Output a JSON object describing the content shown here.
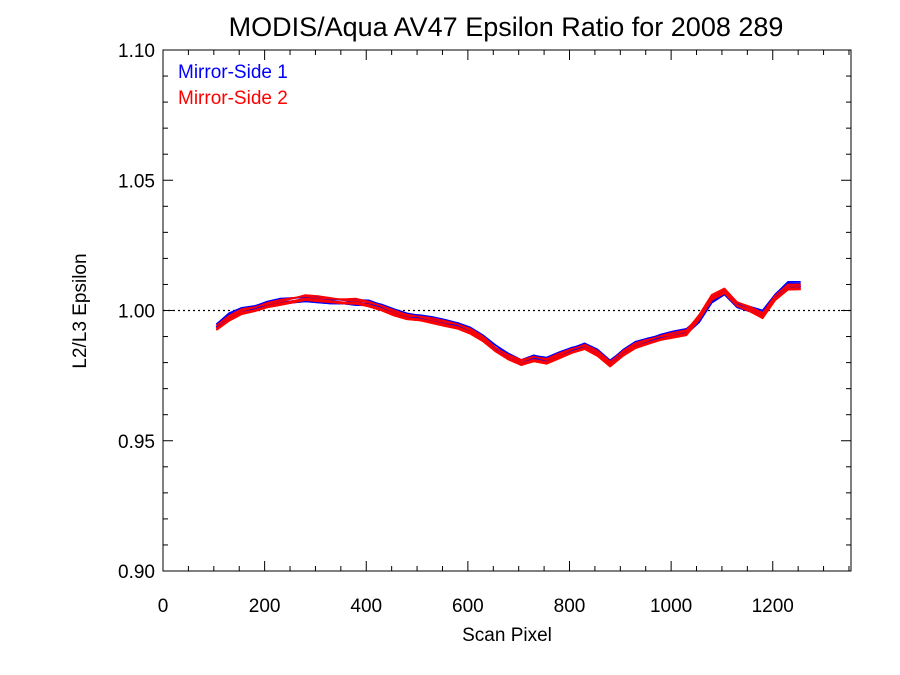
{
  "chart_data": {
    "type": "line",
    "title": "MODIS/Aqua AV47 Epsilon Ratio for 2008 289",
    "xlabel": "Scan Pixel",
    "ylabel": "L2/L3 Epsilon",
    "xlim": [
      0,
      1354
    ],
    "ylim": [
      0.9,
      1.1
    ],
    "x_ticks": [
      0,
      200,
      400,
      600,
      800,
      1000,
      1200
    ],
    "x_tick_labels": [
      "0",
      "200",
      "400",
      "600",
      "800",
      "1000",
      "1200"
    ],
    "y_ticks": [
      0.9,
      0.95,
      1.0,
      1.05,
      1.1
    ],
    "y_tick_labels": [
      "0.90",
      "0.95",
      "1.00",
      "1.05",
      "1.10"
    ],
    "reference_line": {
      "y": 1.0,
      "style": "dotted",
      "color": "#000000"
    },
    "legend": {
      "position": "top-left"
    },
    "x": [
      105,
      130,
      155,
      180,
      205,
      230,
      255,
      280,
      305,
      330,
      355,
      380,
      405,
      430,
      455,
      480,
      505,
      530,
      555,
      580,
      605,
      630,
      655,
      680,
      705,
      730,
      755,
      780,
      805,
      830,
      855,
      880,
      905,
      930,
      955,
      980,
      1005,
      1030,
      1055,
      1080,
      1105,
      1130,
      1155,
      1180,
      1205,
      1230,
      1255
    ],
    "series": [
      {
        "name": "Mirror-Side 1",
        "color": "#0000ff",
        "values": [
          0.9935,
          0.9975,
          0.9995,
          1.0005,
          1.002,
          1.003,
          1.0035,
          1.004,
          1.0035,
          1.003,
          1.003,
          1.0025,
          1.0025,
          1.001,
          0.999,
          0.9975,
          0.997,
          0.996,
          0.995,
          0.994,
          0.992,
          0.989,
          0.9855,
          0.982,
          0.9795,
          0.9815,
          0.9805,
          0.9825,
          0.9845,
          0.986,
          0.9835,
          0.9795,
          0.9835,
          0.9865,
          0.988,
          0.9895,
          0.9905,
          0.9915,
          0.996,
          1.0035,
          1.0065,
          1.0015,
          1.0,
          0.9985,
          1.005,
          1.0095,
          1.0095
        ]
      },
      {
        "name": "Mirror-Side 2",
        "color": "#ff0000",
        "values": [
          0.993,
          0.9965,
          0.999,
          1.0,
          1.0015,
          1.0025,
          1.0035,
          1.0045,
          1.004,
          1.0035,
          1.003,
          1.003,
          1.002,
          1.0005,
          0.9985,
          0.997,
          0.9965,
          0.9955,
          0.9945,
          0.9935,
          0.9915,
          0.9885,
          0.9845,
          0.9815,
          0.9795,
          0.981,
          0.98,
          0.982,
          0.984,
          0.9855,
          0.983,
          0.979,
          0.983,
          0.986,
          0.9875,
          0.989,
          0.99,
          0.991,
          0.997,
          1.0045,
          1.007,
          1.002,
          1.0,
          0.9975,
          1.0045,
          1.0085,
          1.0085
        ]
      }
    ]
  }
}
